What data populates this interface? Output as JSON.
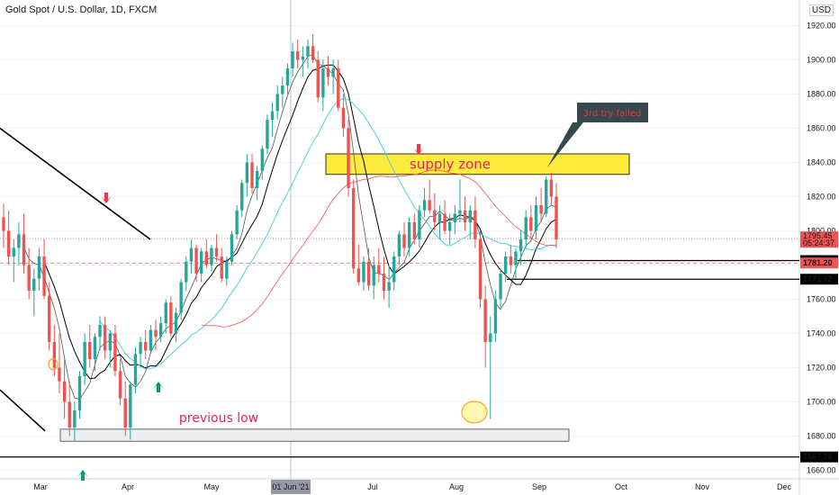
{
  "header": {
    "symbol_title": "Gold Spot / U.S. Dollar, 1D, FXCM",
    "currency_badge": "USD"
  },
  "colors": {
    "up": "#26a69a",
    "down": "#ef5350",
    "sma_fast": "#000000",
    "sma_mid": "#555555",
    "ema_cyan": "#4dd0e1",
    "ema_red": "#ef5350",
    "supply_fill": "#ffeb3b",
    "supply_text": "#e91e63",
    "callout_bg": "#37474f",
    "callout_text": "#e53935",
    "previous_low_text": "#e91e63",
    "arrow_down": "#f23645",
    "arrow_up": "#089981"
  },
  "annotations": {
    "supply_zone": "supply zone",
    "callout": "3rd try failed",
    "previous_low": "previous low"
  },
  "chart_data": {
    "type": "candlestick",
    "title": "Gold Spot / U.S. Dollar, 1D, FXCM",
    "ylim": [
      1655,
      1935
    ],
    "y_ticks": [
      1660.0,
      1680.0,
      1700.0,
      1720.0,
      1740.0,
      1760.0,
      1780.0,
      1800.0,
      1820.0,
      1840.0,
      1860.0,
      1880.0,
      1900.0,
      1920.0
    ],
    "x_ticks": [
      "Mar",
      "Apr",
      "May",
      "01 Jun '21",
      "Jul",
      "Aug",
      "Sep",
      "Oct",
      "Nov",
      "Dec"
    ],
    "price_labels": [
      {
        "value": "1795.45",
        "sub": "05:24:37",
        "kind": "last"
      },
      {
        "value": "1782.62",
        "kind": "line"
      },
      {
        "value": "1781.20",
        "kind": "dashed"
      },
      {
        "value": "1771.72",
        "kind": "line"
      },
      {
        "value": "1667.78",
        "kind": "line"
      }
    ],
    "candles": [
      [
        1808,
        1816,
        1790,
        1800
      ],
      [
        1800,
        1812,
        1780,
        1785
      ],
      [
        1785,
        1795,
        1770,
        1790
      ],
      [
        1790,
        1805,
        1780,
        1798
      ],
      [
        1798,
        1810,
        1775,
        1780
      ],
      [
        1780,
        1790,
        1760,
        1765
      ],
      [
        1765,
        1778,
        1750,
        1772
      ],
      [
        1772,
        1790,
        1765,
        1785
      ],
      [
        1785,
        1795,
        1760,
        1762
      ],
      [
        1762,
        1770,
        1730,
        1735
      ],
      [
        1735,
        1745,
        1715,
        1720
      ],
      [
        1720,
        1740,
        1705,
        1712
      ],
      [
        1712,
        1725,
        1690,
        1700
      ],
      [
        1700,
        1712,
        1680,
        1685
      ],
      [
        1685,
        1700,
        1677,
        1695
      ],
      [
        1695,
        1718,
        1690,
        1715
      ],
      [
        1715,
        1740,
        1710,
        1735
      ],
      [
        1735,
        1745,
        1720,
        1725
      ],
      [
        1725,
        1740,
        1718,
        1738
      ],
      [
        1738,
        1750,
        1730,
        1745
      ],
      [
        1745,
        1750,
        1725,
        1730
      ],
      [
        1730,
        1742,
        1720,
        1740
      ],
      [
        1740,
        1745,
        1715,
        1718
      ],
      [
        1718,
        1725,
        1698,
        1702
      ],
      [
        1702,
        1712,
        1680,
        1685
      ],
      [
        1685,
        1712,
        1678,
        1710
      ],
      [
        1710,
        1732,
        1705,
        1728
      ],
      [
        1728,
        1738,
        1720,
        1735
      ],
      [
        1735,
        1742,
        1725,
        1730
      ],
      [
        1730,
        1745,
        1728,
        1742
      ],
      [
        1742,
        1748,
        1730,
        1738
      ],
      [
        1738,
        1750,
        1735,
        1746
      ],
      [
        1746,
        1760,
        1740,
        1758
      ],
      [
        1758,
        1762,
        1738,
        1740
      ],
      [
        1740,
        1755,
        1735,
        1752
      ],
      [
        1752,
        1772,
        1748,
        1770
      ],
      [
        1770,
        1785,
        1765,
        1782
      ],
      [
        1782,
        1795,
        1775,
        1790
      ],
      [
        1790,
        1792,
        1770,
        1775
      ],
      [
        1775,
        1790,
        1770,
        1788
      ],
      [
        1788,
        1795,
        1778,
        1780
      ],
      [
        1780,
        1792,
        1776,
        1790
      ],
      [
        1790,
        1798,
        1782,
        1785
      ],
      [
        1785,
        1790,
        1770,
        1772
      ],
      [
        1772,
        1785,
        1768,
        1782
      ],
      [
        1782,
        1800,
        1780,
        1798
      ],
      [
        1798,
        1815,
        1795,
        1812
      ],
      [
        1812,
        1830,
        1808,
        1828
      ],
      [
        1828,
        1845,
        1820,
        1840
      ],
      [
        1840,
        1845,
        1822,
        1825
      ],
      [
        1825,
        1838,
        1818,
        1835
      ],
      [
        1835,
        1850,
        1830,
        1848
      ],
      [
        1848,
        1868,
        1845,
        1865
      ],
      [
        1865,
        1875,
        1855,
        1870
      ],
      [
        1870,
        1885,
        1865,
        1880
      ],
      [
        1880,
        1890,
        1872,
        1885
      ],
      [
        1885,
        1898,
        1880,
        1895
      ],
      [
        1895,
        1910,
        1890,
        1905
      ],
      [
        1905,
        1912,
        1895,
        1900
      ],
      [
        1900,
        1908,
        1890,
        1902
      ],
      [
        1902,
        1912,
        1895,
        1908
      ],
      [
        1908,
        1915,
        1898,
        1900
      ],
      [
        1900,
        1905,
        1875,
        1878
      ],
      [
        1878,
        1900,
        1870,
        1895
      ],
      [
        1895,
        1902,
        1885,
        1890
      ],
      [
        1890,
        1900,
        1880,
        1895
      ],
      [
        1895,
        1900,
        1870,
        1872
      ],
      [
        1872,
        1880,
        1855,
        1860
      ],
      [
        1860,
        1865,
        1820,
        1825
      ],
      [
        1825,
        1830,
        1775,
        1778
      ],
      [
        1778,
        1792,
        1768,
        1770
      ],
      [
        1770,
        1785,
        1765,
        1782
      ],
      [
        1782,
        1790,
        1765,
        1768
      ],
      [
        1768,
        1785,
        1760,
        1780
      ],
      [
        1780,
        1790,
        1770,
        1775
      ],
      [
        1775,
        1785,
        1760,
        1765
      ],
      [
        1765,
        1780,
        1755,
        1770
      ],
      [
        1770,
        1788,
        1765,
        1785
      ],
      [
        1785,
        1800,
        1780,
        1798
      ],
      [
        1798,
        1805,
        1785,
        1790
      ],
      [
        1790,
        1808,
        1785,
        1805
      ],
      [
        1805,
        1810,
        1792,
        1795
      ],
      [
        1795,
        1815,
        1790,
        1812
      ],
      [
        1812,
        1825,
        1808,
        1818
      ],
      [
        1818,
        1830,
        1810,
        1812
      ],
      [
        1812,
        1822,
        1800,
        1805
      ],
      [
        1805,
        1815,
        1795,
        1810
      ],
      [
        1810,
        1818,
        1798,
        1800
      ],
      [
        1800,
        1810,
        1792,
        1805
      ],
      [
        1805,
        1815,
        1798,
        1810
      ],
      [
        1810,
        1830,
        1805,
        1812
      ],
      [
        1812,
        1820,
        1800,
        1805
      ],
      [
        1805,
        1815,
        1795,
        1812
      ],
      [
        1812,
        1820,
        1790,
        1795
      ],
      [
        1795,
        1800,
        1755,
        1760
      ],
      [
        1760,
        1768,
        1720,
        1735
      ],
      [
        1735,
        1750,
        1690,
        1740
      ],
      [
        1740,
        1765,
        1735,
        1760
      ],
      [
        1760,
        1778,
        1755,
        1775
      ],
      [
        1775,
        1788,
        1770,
        1785
      ],
      [
        1785,
        1792,
        1775,
        1780
      ],
      [
        1780,
        1790,
        1772,
        1788
      ],
      [
        1788,
        1800,
        1780,
        1795
      ],
      [
        1795,
        1812,
        1790,
        1808
      ],
      [
        1808,
        1815,
        1795,
        1800
      ],
      [
        1800,
        1820,
        1795,
        1815
      ],
      [
        1815,
        1825,
        1805,
        1810
      ],
      [
        1810,
        1832,
        1808,
        1830
      ],
      [
        1830,
        1834,
        1815,
        1820
      ],
      [
        1820,
        1828,
        1790,
        1795
      ]
    ]
  }
}
